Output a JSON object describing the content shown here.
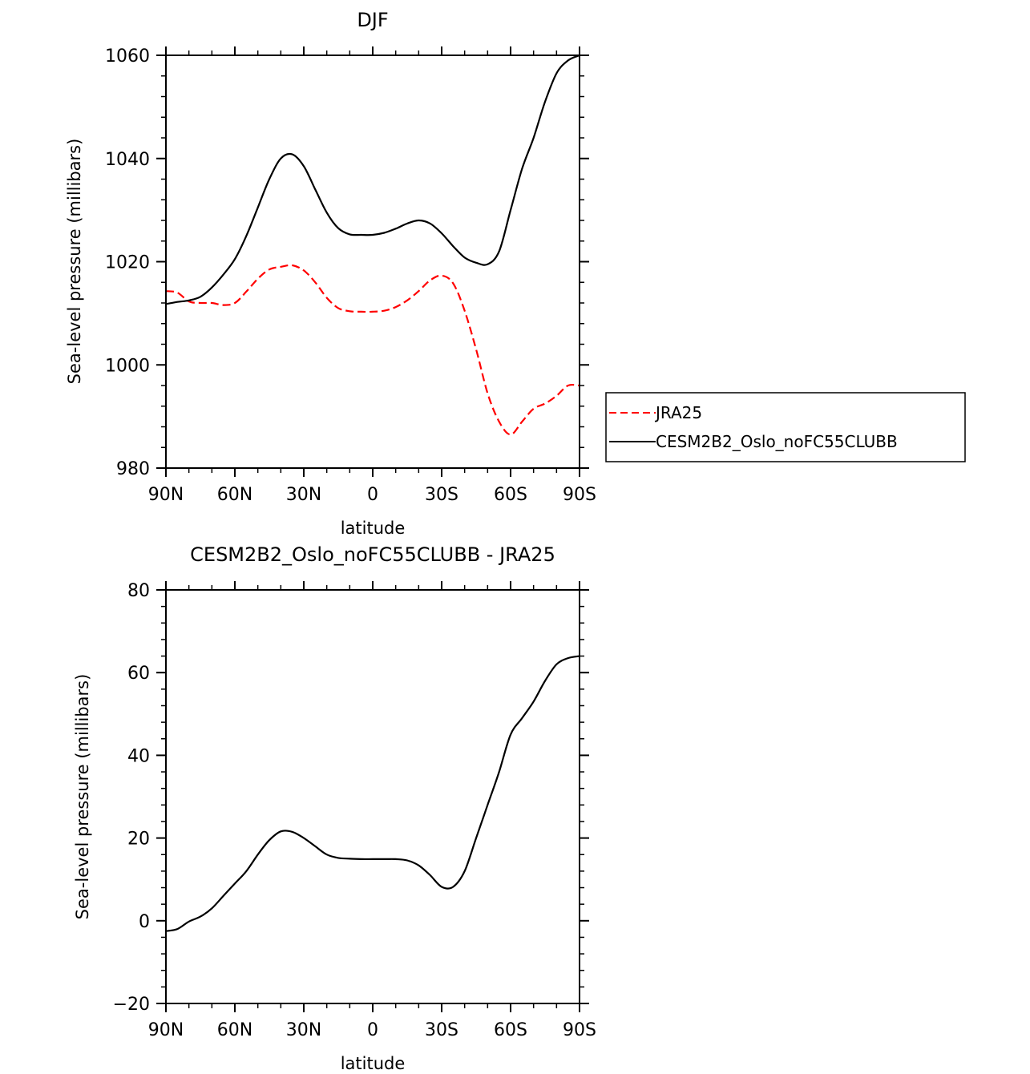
{
  "chart_data": [
    {
      "type": "line",
      "title": "DJF",
      "xlabel": "latitude",
      "ylabel": "Sea-level pressure (millibars)",
      "xlim": [
        90,
        -90
      ],
      "ylim": [
        980,
        1060
      ],
      "x_ticks": [
        "90N",
        "60N",
        "30N",
        "0",
        "30S",
        "60S",
        "90S"
      ],
      "y_ticks": [
        "980",
        "1000",
        "1020",
        "1040",
        "1060"
      ],
      "legend": "right",
      "series": [
        {
          "name": "JRA25",
          "color": "#ff0000",
          "dash": "dashed",
          "x": [
            90,
            85,
            80,
            75,
            70,
            65,
            60,
            55,
            50,
            45,
            40,
            35,
            30,
            25,
            20,
            15,
            10,
            5,
            0,
            -5,
            -10,
            -15,
            -20,
            -25,
            -30,
            -35,
            -40,
            -45,
            -50,
            -55,
            -60,
            -65,
            -70,
            -75,
            -80,
            -85,
            -90
          ],
          "y": [
            1014.3,
            1014.0,
            1012.3,
            1012.0,
            1012.0,
            1011.6,
            1012.0,
            1014.2,
            1016.7,
            1018.5,
            1019.0,
            1019.3,
            1018.3,
            1016.0,
            1013.0,
            1011.0,
            1010.4,
            1010.3,
            1010.3,
            1010.5,
            1011.2,
            1012.5,
            1014.3,
            1016.4,
            1017.3,
            1015.8,
            1010.5,
            1003.0,
            994.5,
            989.0,
            986.5,
            989.0,
            991.5,
            992.5,
            994.0,
            996.0,
            996.0
          ]
        },
        {
          "name": "CESM2B2_Oslo_noFC55CLUBB",
          "color": "#000000",
          "dash": "solid",
          "x": [
            90,
            85,
            80,
            75,
            70,
            65,
            60,
            55,
            50,
            45,
            40,
            35,
            30,
            25,
            20,
            15,
            10,
            5,
            0,
            -5,
            -10,
            -15,
            -20,
            -25,
            -30,
            -35,
            -40,
            -45,
            -50,
            -55,
            -60,
            -65,
            -70,
            -75,
            -80,
            -85,
            -90
          ],
          "y": [
            1011.8,
            1012.2,
            1012.5,
            1013.2,
            1015.0,
            1017.5,
            1020.5,
            1025.0,
            1030.5,
            1036.0,
            1040.0,
            1040.8,
            1038.5,
            1034.0,
            1029.5,
            1026.5,
            1025.3,
            1025.2,
            1025.2,
            1025.6,
            1026.4,
            1027.4,
            1028.0,
            1027.4,
            1025.5,
            1023.0,
            1020.8,
            1019.8,
            1019.5,
            1022.0,
            1030.0,
            1038.0,
            1044.0,
            1051.0,
            1056.5,
            1059.0,
            1060.0
          ]
        }
      ]
    },
    {
      "type": "line",
      "title": "CESM2B2_Oslo_noFC55CLUBB - JRA25",
      "xlabel": "latitude",
      "ylabel": "Sea-level pressure (millibars)",
      "xlim": [
        90,
        -90
      ],
      "ylim": [
        -20,
        80
      ],
      "x_ticks": [
        "90N",
        "60N",
        "30N",
        "0",
        "30S",
        "60S",
        "90S"
      ],
      "y_ticks": [
        "−20",
        "0",
        "20",
        "40",
        "60",
        "80"
      ],
      "series": [
        {
          "color": "#000000",
          "dash": "solid",
          "x": [
            90,
            85,
            80,
            75,
            70,
            65,
            60,
            55,
            50,
            45,
            40,
            35,
            30,
            25,
            20,
            15,
            10,
            5,
            0,
            -5,
            -10,
            -15,
            -20,
            -25,
            -30,
            -35,
            -40,
            -45,
            -50,
            -55,
            -60,
            -65,
            -70,
            -75,
            -80,
            -85,
            -90
          ],
          "y": [
            -2.5,
            -2.0,
            -0.2,
            1.0,
            3.0,
            6.0,
            9.0,
            12.0,
            16.0,
            19.5,
            21.6,
            21.5,
            20.0,
            18.0,
            16.0,
            15.2,
            15.0,
            14.9,
            14.9,
            14.9,
            14.9,
            14.6,
            13.4,
            11.0,
            8.2,
            8.2,
            12.0,
            20.0,
            28.0,
            36.0,
            45.0,
            49.0,
            53.0,
            58.0,
            62.0,
            63.5,
            64.0
          ]
        }
      ]
    }
  ],
  "legend": {
    "items": [
      {
        "label": "JRA25",
        "color": "#ff0000",
        "dash": "dashed"
      },
      {
        "label": "CESM2B2_Oslo_noFC55CLUBB",
        "color": "#000000",
        "dash": "solid"
      }
    ]
  }
}
